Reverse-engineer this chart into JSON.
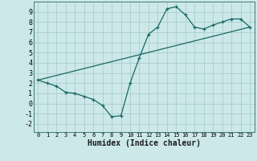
{
  "xlabel": "Humidex (Indice chaleur)",
  "bg_color": "#cce8e8",
  "grid_color": "#aacece",
  "line_color": "#1a6868",
  "xlim": [
    -0.5,
    23.5
  ],
  "ylim": [
    -2.8,
    10.0
  ],
  "xticks": [
    0,
    1,
    2,
    3,
    4,
    5,
    6,
    7,
    8,
    9,
    10,
    11,
    12,
    13,
    14,
    15,
    16,
    17,
    18,
    19,
    20,
    21,
    22,
    23
  ],
  "yticks": [
    -2,
    -1,
    0,
    1,
    2,
    3,
    4,
    5,
    6,
    7,
    8,
    9
  ],
  "curve1_x": [
    0,
    1,
    2,
    3,
    4,
    5,
    6,
    7,
    8,
    9,
    10,
    11,
    12,
    13,
    14,
    15,
    16,
    17,
    18,
    19,
    20,
    21,
    22,
    23
  ],
  "curve1_y": [
    2.3,
    2.0,
    1.7,
    1.1,
    1.0,
    0.7,
    0.4,
    -0.2,
    -1.3,
    -1.2,
    2.0,
    4.5,
    6.8,
    7.5,
    9.3,
    9.5,
    8.7,
    7.5,
    7.3,
    7.7,
    8.0,
    8.3,
    8.3,
    7.5
  ],
  "curve2_x": [
    0,
    23
  ],
  "curve2_y": [
    2.3,
    7.5
  ],
  "xlabel_fontsize": 7,
  "tick_fontsize_x": 5,
  "tick_fontsize_y": 6
}
